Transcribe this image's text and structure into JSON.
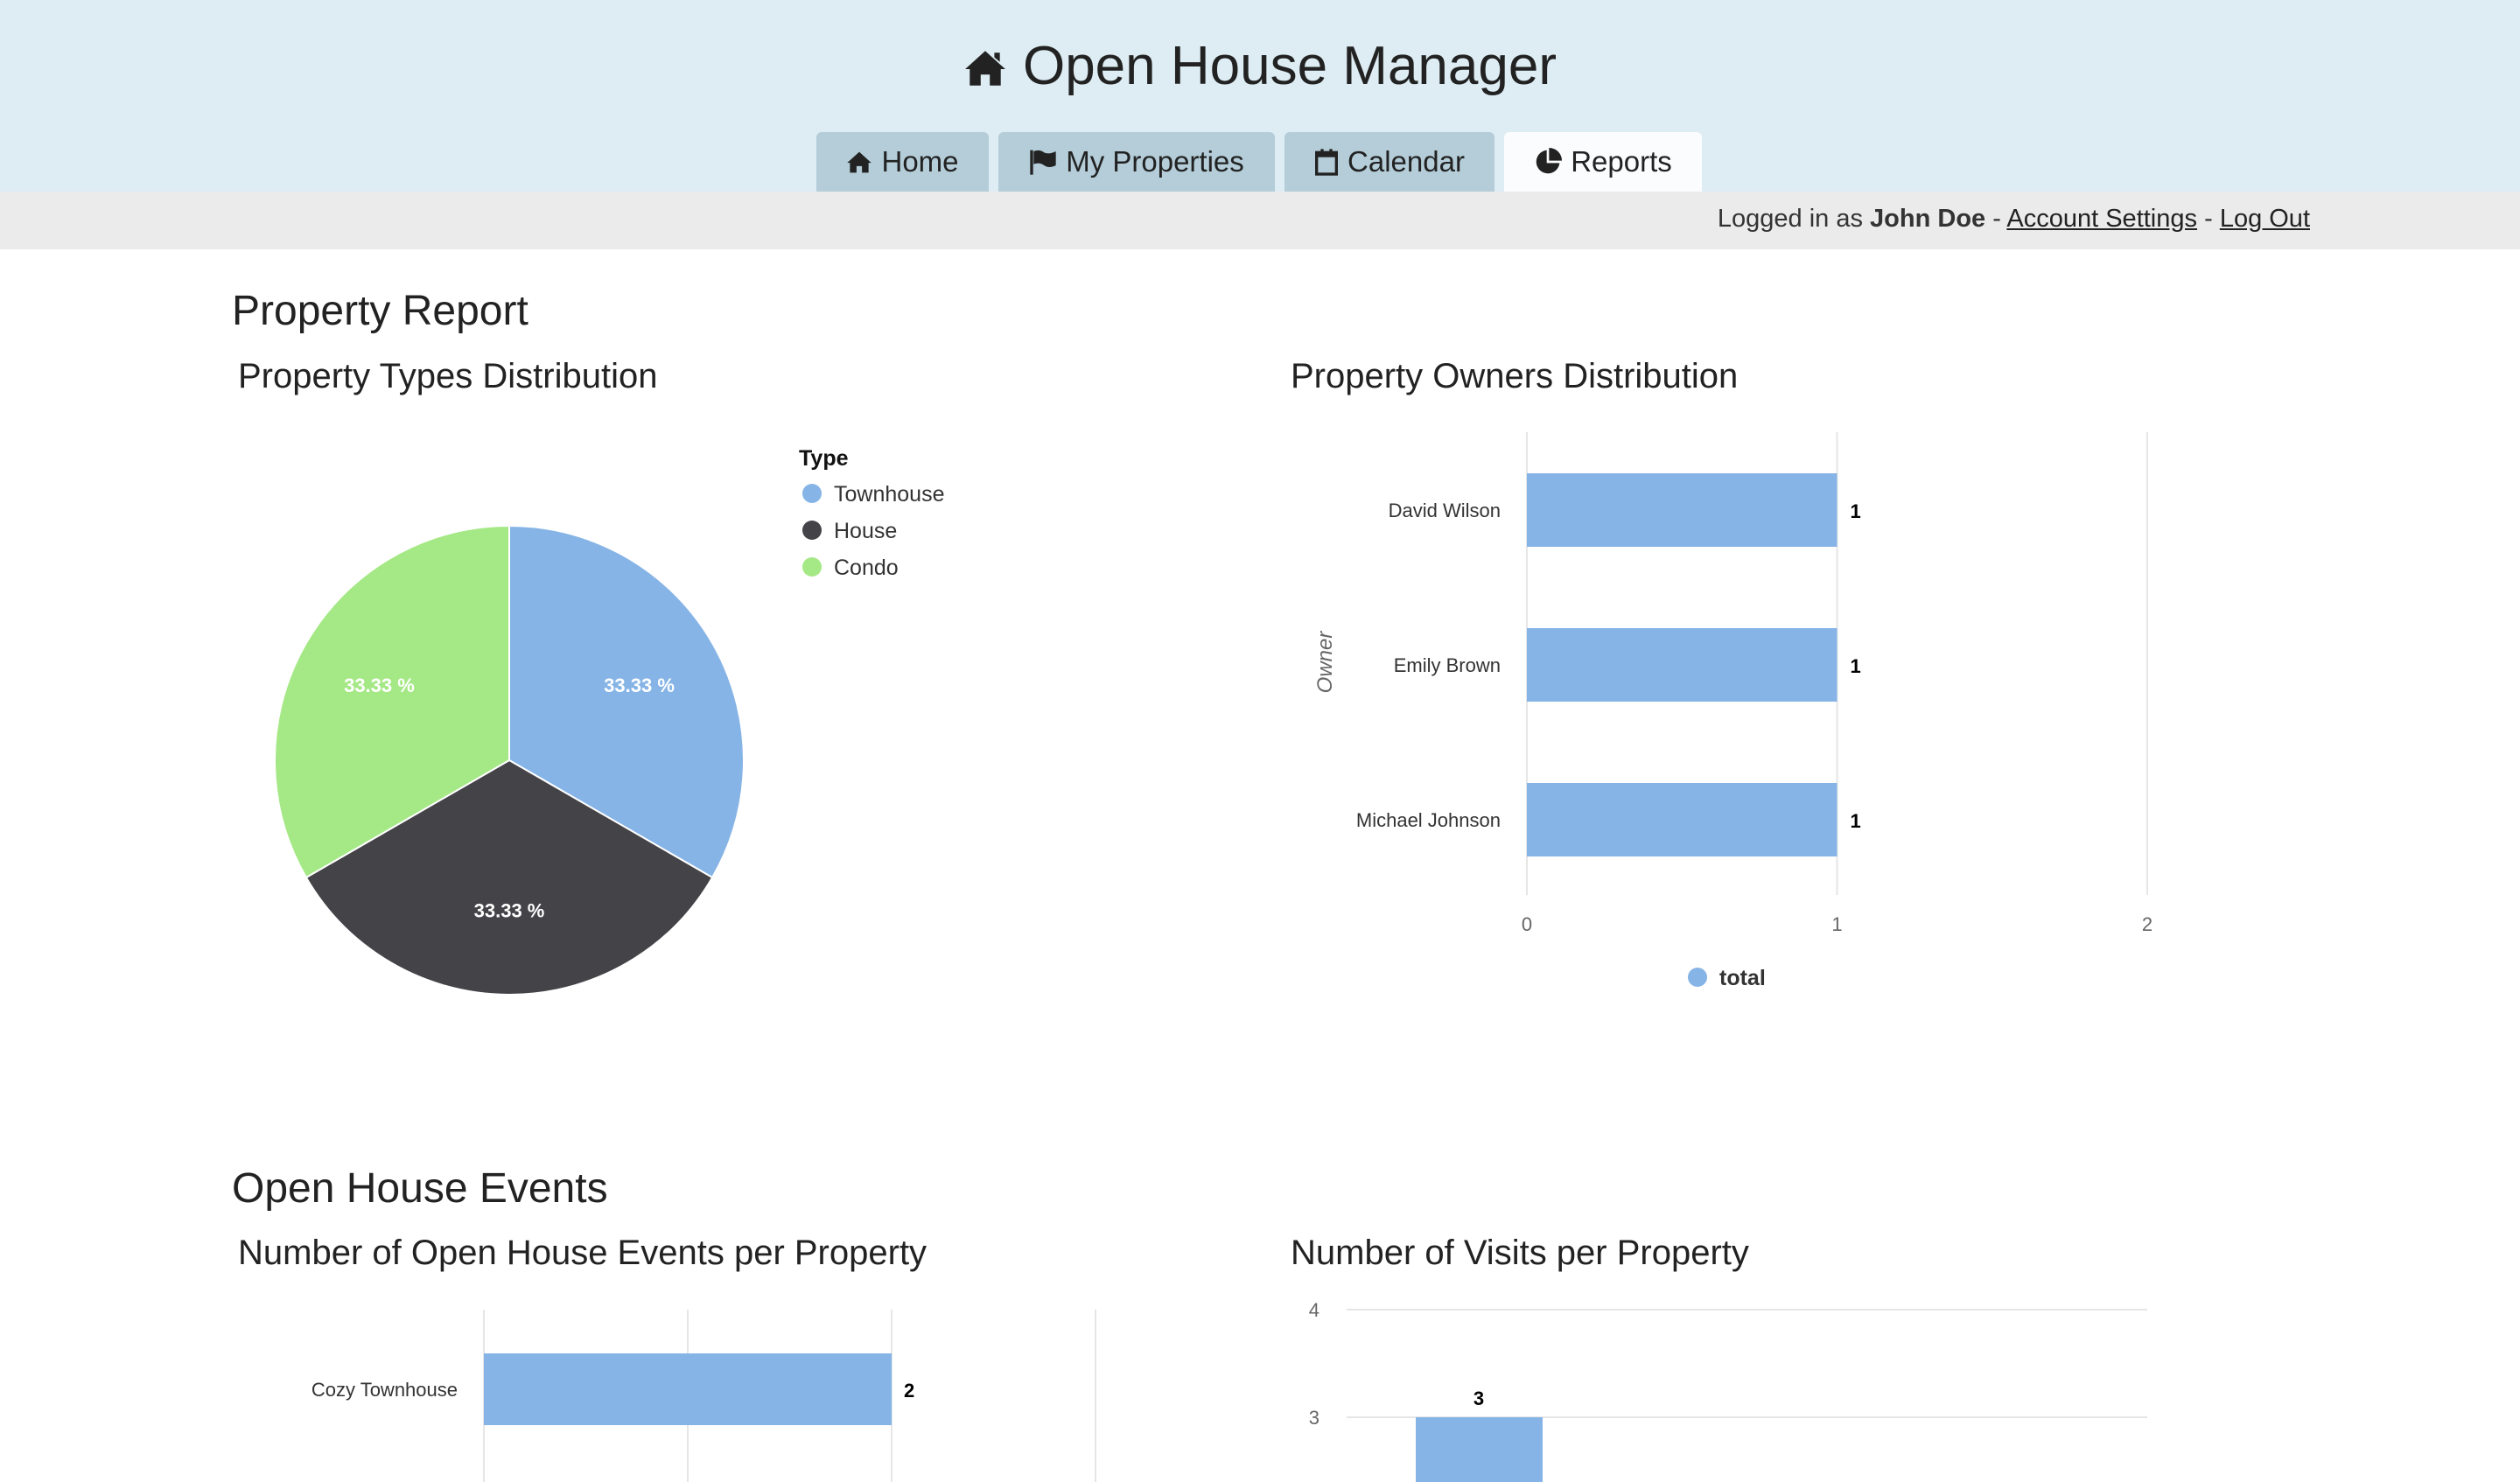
{
  "app": {
    "title": "Open House Manager",
    "title_icon": "home-icon"
  },
  "tabs": [
    {
      "label": "Home",
      "icon": "home-icon"
    },
    {
      "label": "My Properties",
      "icon": "flag-icon"
    },
    {
      "label": "Calendar",
      "icon": "calendar-icon"
    },
    {
      "label": "Reports",
      "icon": "pie-chart-icon",
      "active": true
    }
  ],
  "userbar": {
    "prefix": "Logged in as",
    "user": "John Doe",
    "sep": "-",
    "account_settings": "Account Settings",
    "logout": "Log Out"
  },
  "sections": {
    "property_report": "Property Report",
    "open_house_events": "Open House Events"
  },
  "chart_data": [
    {
      "type": "pie",
      "title": "Property Types Distribution",
      "legend_title": "Type",
      "legend_position": "top-right",
      "labels": [
        "Townhouse",
        "House",
        "Condo"
      ],
      "values": [
        33.33,
        33.33,
        33.33
      ],
      "value_labels": [
        "33.33 %",
        "33.33 %",
        "33.33 %"
      ],
      "colors": [
        "#86b4e6",
        "#434348",
        "#a5e886"
      ]
    },
    {
      "type": "bar",
      "orientation": "horizontal",
      "title": "Property Owners Distribution",
      "ylabel": "Owner",
      "categories": [
        "David Wilson",
        "Emily Brown",
        "Michael Johnson"
      ],
      "series": [
        {
          "name": "total",
          "values": [
            1,
            1,
            1
          ]
        }
      ],
      "xlim": [
        0,
        2
      ],
      "xticks": [
        "0",
        "1",
        "2"
      ],
      "grid": true,
      "legend_position": "bottom",
      "color": "#86b4e6"
    },
    {
      "type": "bar",
      "orientation": "horizontal",
      "title": "Number of Open House Events per Property",
      "categories": [
        "Cozy Townhouse"
      ],
      "series": [
        {
          "values": [
            2
          ]
        }
      ],
      "grid": true,
      "color": "#86b4e6"
    },
    {
      "type": "bar",
      "orientation": "vertical",
      "title": "Number of Visits per Property",
      "series": [
        {
          "values": [
            3
          ]
        }
      ],
      "yticks": [
        "4",
        "3"
      ],
      "grid": true,
      "color": "#86b4e6"
    }
  ]
}
